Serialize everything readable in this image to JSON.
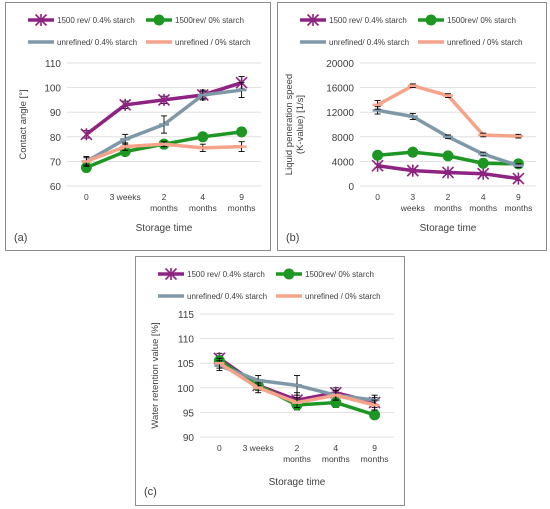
{
  "colors": {
    "s1500_04": "#8e2382",
    "s1500_0": "#1e9623",
    "unref_04": "#7f98a8",
    "unref_0": "#f6a38a",
    "grid": "#d9d9d9",
    "text": "#404040"
  },
  "chart_data": [
    {
      "type": "line",
      "panel_label": "(a)",
      "xlabel": "Storage time",
      "ylabel": "Contact angle [°]",
      "categories": [
        [
          "0"
        ],
        [
          "3 weeks"
        ],
        [
          "2",
          "months"
        ],
        [
          "4",
          "months"
        ],
        [
          "9",
          "months"
        ]
      ],
      "ylim": [
        60,
        110
      ],
      "yticks": [
        60,
        70,
        80,
        90,
        100,
        110
      ],
      "grid": true,
      "legend_position": "top",
      "series": [
        {
          "name": "1500 rev/ 0.4% starch",
          "values": [
            81,
            93,
            95,
            97,
            102
          ],
          "errors": [
            1.5,
            1.5,
            1.5,
            1.5,
            2.5
          ],
          "marker": "star",
          "color": "#8e2382"
        },
        {
          "name": "1500rev/ 0% starch",
          "values": [
            67.5,
            74,
            77,
            80,
            82
          ],
          "errors": [
            1.5,
            1.5,
            1.5,
            1.5,
            1.5
          ],
          "marker": "circle",
          "color": "#1e9623"
        },
        {
          "name": "unrefined/ 0.4% starch",
          "values": [
            70,
            79,
            85,
            97,
            99
          ],
          "errors": [
            2,
            2,
            3.5,
            2,
            3
          ],
          "marker": "dash",
          "color": "#7f98a8"
        },
        {
          "name": "unrefined / 0% starch",
          "values": [
            70,
            76,
            77,
            75.5,
            76
          ],
          "errors": [
            1.5,
            1.5,
            1,
            1.5,
            2
          ],
          "marker": "dash",
          "color": "#f6a38a"
        }
      ]
    },
    {
      "type": "line",
      "panel_label": "(b)",
      "xlabel": "Storage time",
      "ylabel": "Liquid peneration speed (K-value) [1/s]",
      "ylabel_lines": [
        "Liquid peneration speed",
        "(K-value) [1/s]"
      ],
      "categories": [
        [
          "0"
        ],
        [
          "3",
          "weeks"
        ],
        [
          "2",
          "months"
        ],
        [
          "4",
          "months"
        ],
        [
          "9",
          "months"
        ]
      ],
      "ylim": [
        0,
        20000
      ],
      "yticks": [
        0,
        4000,
        8000,
        12000,
        16000,
        20000
      ],
      "grid": true,
      "legend_position": "top",
      "series": [
        {
          "name": "1500 rev/ 0.4% starch",
          "values": [
            3300,
            2500,
            2200,
            2000,
            1200
          ],
          "errors": [
            300,
            300,
            300,
            300,
            300
          ],
          "marker": "star",
          "color": "#8e2382"
        },
        {
          "name": "1500rev/ 0% starch",
          "values": [
            5000,
            5500,
            4900,
            3700,
            3600
          ],
          "errors": [
            300,
            300,
            300,
            300,
            300
          ],
          "marker": "circle",
          "color": "#1e9623"
        },
        {
          "name": "unrefined/ 0.4% starch",
          "values": [
            12300,
            11300,
            8000,
            5200,
            3300
          ],
          "errors": [
            600,
            500,
            300,
            300,
            300
          ],
          "marker": "dash",
          "color": "#7f98a8"
        },
        {
          "name": "unrefined / 0% starch",
          "values": [
            13200,
            16300,
            14700,
            8300,
            8100
          ],
          "errors": [
            700,
            300,
            300,
            300,
            300
          ],
          "marker": "dash",
          "color": "#f6a38a"
        }
      ]
    },
    {
      "type": "line",
      "panel_label": "(c)",
      "xlabel": "Storage time",
      "ylabel": "Water retention value [%]",
      "categories": [
        [
          "0"
        ],
        [
          "3 weeks"
        ],
        [
          "2",
          "months"
        ],
        [
          "4",
          "months"
        ],
        [
          "9",
          "months"
        ]
      ],
      "ylim": [
        90,
        115
      ],
      "yticks": [
        90,
        95,
        100,
        105,
        110,
        115
      ],
      "grid": true,
      "legend_position": "top",
      "series": [
        {
          "name": "1500 rev/ 0.4% starch",
          "values": [
            106,
            100.5,
            97.5,
            99,
            97
          ],
          "errors": [
            1,
            1,
            1.5,
            1,
            1
          ],
          "marker": "star",
          "color": "#8e2382"
        },
        {
          "name": "1500rev/ 0% starch",
          "values": [
            105.5,
            100.5,
            96.5,
            97,
            94.5
          ],
          "errors": [
            1,
            1,
            1,
            1,
            0.5
          ],
          "marker": "circle",
          "color": "#1e9623"
        },
        {
          "name": "unrefined/ 0.4% starch",
          "values": [
            104.5,
            101.5,
            100.5,
            98.5,
            97.5
          ],
          "errors": [
            1,
            1,
            2,
            1,
            1
          ],
          "marker": "dash",
          "color": "#7f98a8"
        },
        {
          "name": "unrefined / 0% starch",
          "values": [
            105,
            100,
            97,
            98.5,
            96.5
          ],
          "errors": [
            1,
            1,
            1,
            1,
            1
          ],
          "marker": "dash",
          "color": "#f6a38a"
        }
      ]
    }
  ]
}
